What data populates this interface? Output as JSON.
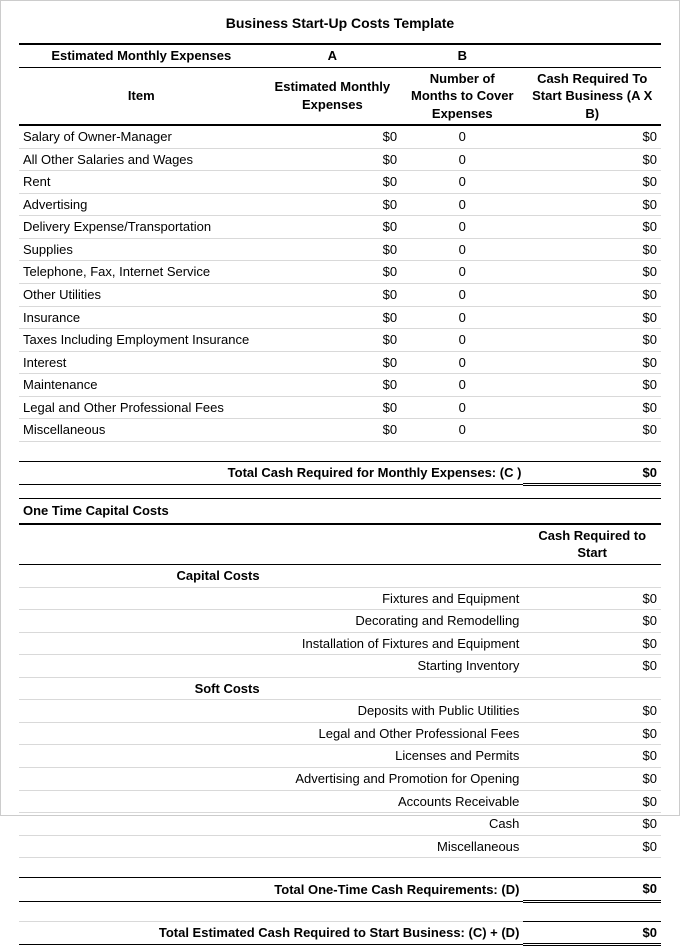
{
  "title": "Business Start-Up Costs Template",
  "monthly": {
    "header_main": "Estimated Monthly Expenses",
    "col_a_label": "A",
    "col_b_label": "B",
    "item_label": "Item",
    "col_a_header": "Estimated Monthly Expenses",
    "col_b_header": "Number of Months  to Cover Expenses",
    "col_c_header": "Cash Required To Start Business (A X B)",
    "rows": [
      {
        "item": "Salary of Owner-Manager",
        "a": "$0",
        "b": "0",
        "c": "$0"
      },
      {
        "item": "All Other Salaries and Wages",
        "a": "$0",
        "b": "0",
        "c": "$0"
      },
      {
        "item": "Rent",
        "a": "$0",
        "b": "0",
        "c": "$0"
      },
      {
        "item": "Advertising",
        "a": "$0",
        "b": "0",
        "c": "$0"
      },
      {
        "item": "Delivery Expense/Transportation",
        "a": "$0",
        "b": "0",
        "c": "$0"
      },
      {
        "item": "Supplies",
        "a": "$0",
        "b": "0",
        "c": "$0"
      },
      {
        "item": "Telephone, Fax, Internet Service",
        "a": "$0",
        "b": "0",
        "c": "$0"
      },
      {
        "item": "Other Utilities",
        "a": "$0",
        "b": "0",
        "c": "$0"
      },
      {
        "item": "Insurance",
        "a": "$0",
        "b": "0",
        "c": "$0"
      },
      {
        "item": "Taxes Including Employment Insurance",
        "a": "$0",
        "b": "0",
        "c": "$0"
      },
      {
        "item": "Interest",
        "a": "$0",
        "b": "0",
        "c": "$0"
      },
      {
        "item": "Maintenance",
        "a": "$0",
        "b": "0",
        "c": "$0"
      },
      {
        "item": "Legal and Other Professional Fees",
        "a": "$0",
        "b": "0",
        "c": "$0"
      },
      {
        "item": "Miscellaneous",
        "a": "$0",
        "b": "0",
        "c": "$0"
      }
    ],
    "total_label": "Total Cash Required for Monthly Expenses: (C )",
    "total_value": "$0"
  },
  "onetime": {
    "header": "One Time Capital Costs",
    "col_c_header": "Cash Required to Start",
    "cap_label": "Capital Costs",
    "cap_rows": [
      {
        "item": "Fixtures and Equipment",
        "c": "$0"
      },
      {
        "item": "Decorating and Remodelling",
        "c": "$0"
      },
      {
        "item": "Installation of Fixtures and Equipment",
        "c": "$0"
      },
      {
        "item": "Starting Inventory",
        "c": "$0"
      }
    ],
    "soft_label": "Soft Costs",
    "soft_rows": [
      {
        "item": "Deposits with Public Utilities",
        "c": "$0"
      },
      {
        "item": "Legal and Other Professional Fees",
        "c": "$0"
      },
      {
        "item": "Licenses and Permits",
        "c": "$0"
      },
      {
        "item": "Advertising and Promotion for Opening",
        "c": "$0"
      },
      {
        "item": "Accounts Receivable",
        "c": "$0"
      },
      {
        "item": "Cash",
        "c": "$0"
      },
      {
        "item": "Miscellaneous",
        "c": "$0"
      }
    ],
    "total_label": "Total One-Time Cash Requirements: (D)",
    "total_value": "$0"
  },
  "grand": {
    "label": "Total Estimated Cash Required to Start Business: (C) + (D)",
    "value": "$0"
  }
}
